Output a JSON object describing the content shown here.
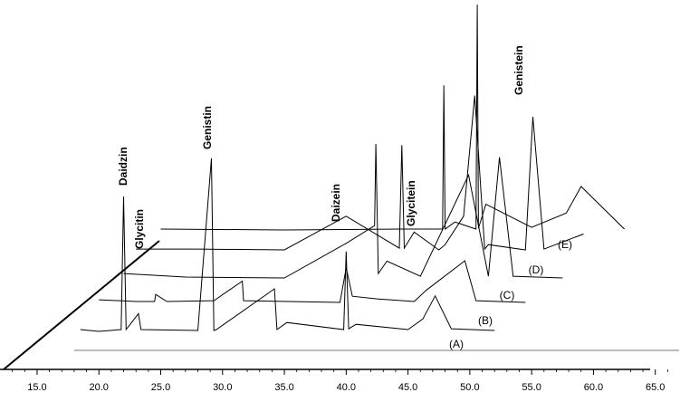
{
  "chart_data": {
    "type": "line",
    "title": "",
    "xlabel": "",
    "ylabel": "",
    "xlim": [
      12.0,
      67.0
    ],
    "x_ticks": [
      "15.0",
      "20.0",
      "25.0",
      "30.0",
      "35.0",
      "40.0",
      "45.0",
      "50.0",
      "55.0",
      "60.0",
      "65.0"
    ],
    "grid": false,
    "legend": "none",
    "series": [
      {
        "name": "(A)",
        "x": [
          18.0,
          60.0
        ],
        "values": [
          0,
          0
        ]
      },
      {
        "name": "(B)",
        "x": [
          18.5,
          20.0,
          21.8,
          22.0,
          22.2,
          23.2,
          23.4,
          28.0,
          29.1,
          29.3,
          29.5,
          34.2,
          34.4,
          35.2,
          39.8,
          40.0,
          40.2,
          40.8,
          45.0,
          46.2,
          47.2,
          48.5,
          52.0
        ],
        "values": [
          2,
          0,
          2,
          152,
          2,
          20,
          2,
          1,
          195,
          1,
          2,
          48,
          2,
          10,
          2,
          90,
          3,
          8,
          2,
          14,
          40,
          3,
          1
        ]
      },
      {
        "name": "(C)",
        "x": [
          20.0,
          23.0,
          24.5,
          24.6,
          25.5,
          29.3,
          31.6,
          31.7,
          39.5,
          40.0,
          40.5,
          42.5,
          45.5,
          46.5,
          49.6,
          50.5,
          54.5
        ],
        "values": [
          4,
          2,
          2,
          10,
          2,
          3,
          25,
          3,
          1,
          40,
          8,
          5,
          2,
          15,
          48,
          3,
          1
        ]
      },
      {
        "name": "(D)",
        "x": [
          22.0,
          27.0,
          35.0,
          40.0,
          42.3,
          42.4,
          42.6,
          43.3,
          46.0,
          49.9,
          51.5,
          52.4,
          53.5,
          57.5
        ],
        "values": [
          6,
          2,
          1,
          40,
          60,
          152,
          6,
          20,
          3,
          117,
          3,
          137,
          3,
          1
        ]
      },
      {
        "name": "(E)",
        "x": [
          23.0,
          28.0,
          35.0,
          40.0,
          44.3,
          44.5,
          44.7,
          45.5,
          47.5,
          48.0,
          49.5,
          50.4,
          51.2,
          51.5,
          54.5,
          55.1,
          56.0,
          59.2
        ],
        "values": [
          3,
          3,
          2,
          40,
          4,
          120,
          4,
          22,
          2,
          8,
          40,
          176,
          3,
          8,
          2,
          152,
          3,
          20
        ]
      },
      {
        "name": "",
        "x": [
          25.0,
          35.0,
          44.5,
          47.8,
          47.9,
          48.0,
          48.8,
          50.5,
          50.6,
          50.7,
          51.3,
          55.0,
          57.8,
          59.0,
          62.5
        ],
        "values": [
          2,
          1,
          2,
          2,
          164,
          2,
          10,
          2,
          255,
          3,
          30,
          4,
          20,
          50,
          2
        ]
      }
    ],
    "peak_labels": [
      {
        "text": "Daidzin",
        "x": 22.0
      },
      {
        "text": "Glycitin",
        "x": 23.5
      },
      {
        "text": "Genistin",
        "x": 29.3
      },
      {
        "text": "Daizein",
        "x": 40.0
      },
      {
        "text": "Glycitein",
        "x": 45.5
      },
      {
        "text": "Genistein",
        "x": 55.1
      }
    ],
    "trace_labels": [
      "(A)",
      "(B)",
      "(C)",
      "(D)",
      "(E)"
    ]
  }
}
